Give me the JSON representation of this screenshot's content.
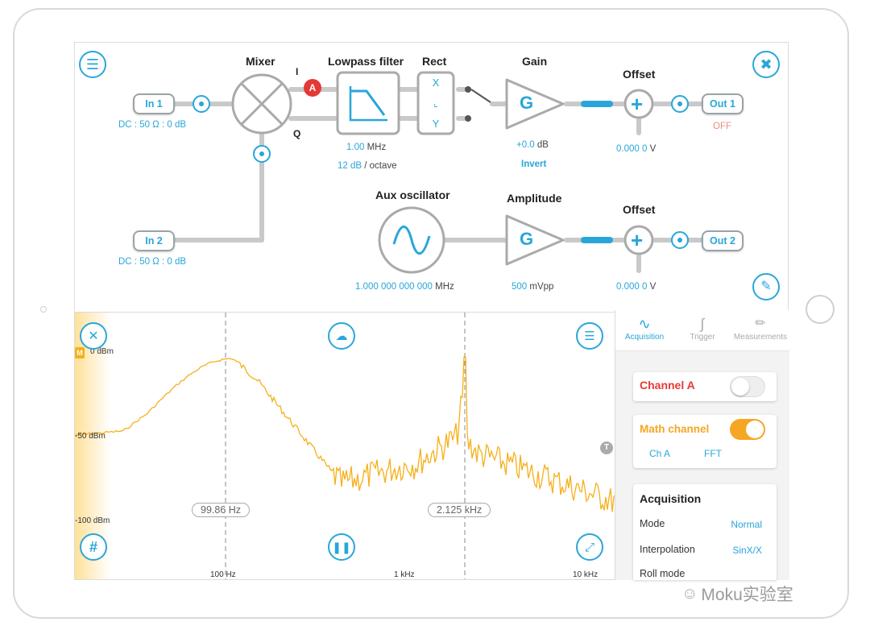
{
  "blocks": {
    "mixer": "Mixer",
    "lowpass": "Lowpass filter",
    "rect": "Rect",
    "gain": "Gain",
    "offset1": "Offset",
    "aux": "Aux oscillator",
    "amplitude": "Amplitude",
    "offset2": "Offset"
  },
  "inputs": {
    "in1": {
      "label": "In 1",
      "setting": "DC : 50 Ω : 0 dB"
    },
    "in2": {
      "label": "In 2",
      "setting": "DC : 50 Ω : 0 dB"
    }
  },
  "outputs": {
    "out1": {
      "label": "Out 1",
      "state": "OFF"
    },
    "out2": {
      "label": "Out 2"
    }
  },
  "signals": {
    "i": "I",
    "q": "Q",
    "probe_a": "A"
  },
  "glyphs": {
    "gain": "G",
    "plus": "+",
    "rect_x": "X",
    "rect_y": "Y"
  },
  "params": {
    "lpf_freq": "1.00",
    "lpf_freq_unit": "MHz",
    "lpf_slope": "12 dB",
    "lpf_slope_unit": "/ octave",
    "gain_val": "+0.0",
    "gain_unit": "dB",
    "invert": "Invert",
    "offset1_val": "0.000 0",
    "offset1_unit": "V",
    "aux_freq": "1.000 000 000 000",
    "aux_freq_unit": "MHz",
    "amp_val": "500",
    "amp_unit": "mVpp",
    "offset2_val": "0.000 0",
    "offset2_unit": "V"
  },
  "plot": {
    "y_labels": [
      "0 dBm",
      "-50 dBm",
      "-100 dBm"
    ],
    "x_labels": [
      "100 Hz",
      "1 kHz",
      "10 kHz"
    ],
    "cursor1": "99.86 Hz",
    "cursor2": "2.125 kHz",
    "marker_m": "M",
    "marker_t": "T",
    "trace_color": "#f5b01a"
  },
  "panel": {
    "tabs": [
      "Acquisition",
      "Trigger",
      "Measurements"
    ],
    "channel_a": "Channel A",
    "math_channel": "Math channel",
    "math_source": "Ch A",
    "math_op": "FFT",
    "acq_title": "Acquisition",
    "rows": [
      {
        "label": "Mode",
        "value": "Normal"
      },
      {
        "label": "Interpolation",
        "value": "SinX/X"
      },
      {
        "label": "Roll mode",
        "value": ""
      }
    ]
  },
  "watermark": "Moku实验室",
  "colors": {
    "accent": "#29a6d9",
    "warning": "#e53935",
    "trace": "#f5b01a"
  }
}
